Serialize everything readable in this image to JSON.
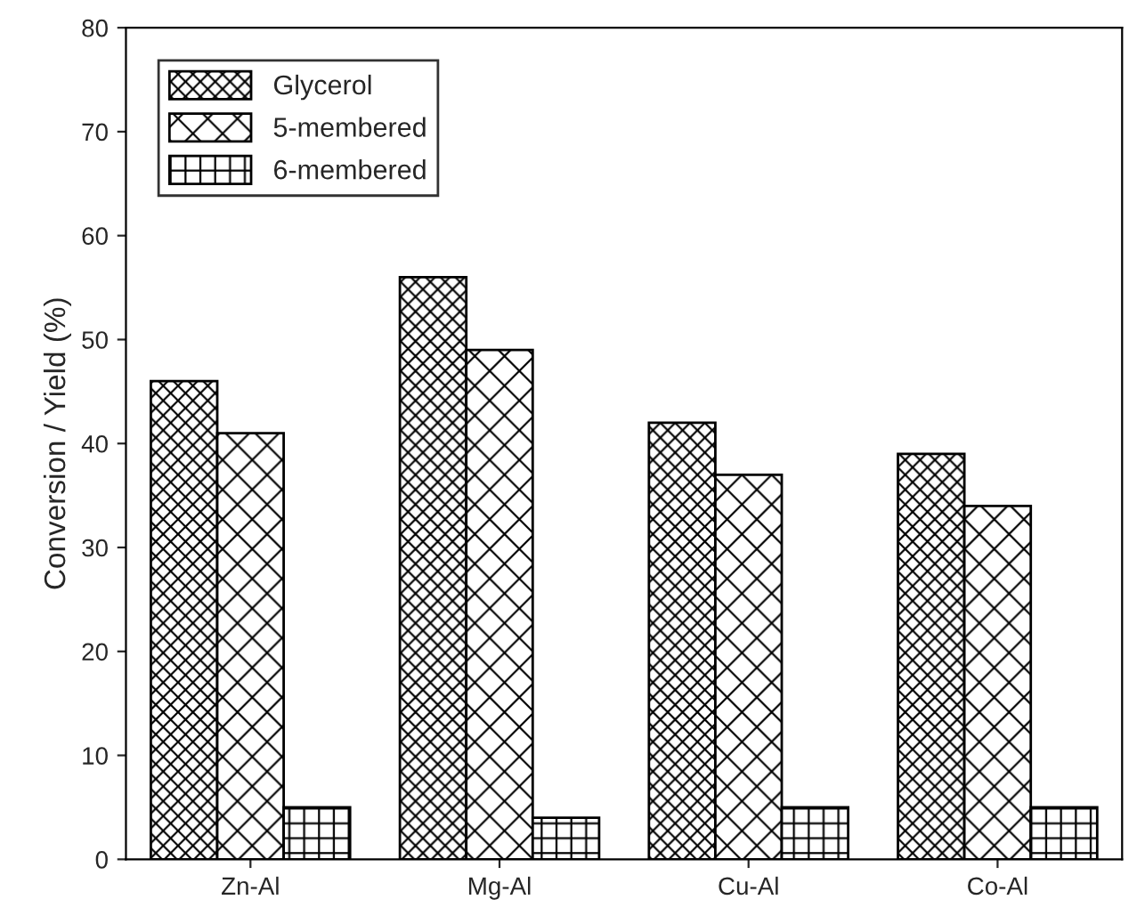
{
  "chart_data": {
    "type": "bar",
    "ylabel": "Conversion / Yield (%)",
    "categories": [
      "Zn-Al",
      "Mg-Al",
      "Cu-Al",
      "Co-Al"
    ],
    "series": [
      {
        "name": "Glycerol",
        "color": "#000000",
        "values": [
          46,
          56,
          42,
          39
        ]
      },
      {
        "name": "5-membered",
        "color": "#000000",
        "values": [
          41,
          49,
          37,
          34
        ]
      },
      {
        "name": "6-membered",
        "color": "#000000",
        "values": [
          5,
          4,
          5,
          5
        ]
      }
    ],
    "ylim": [
      0,
      80
    ],
    "yticks": [
      0,
      10,
      20,
      30,
      40,
      50,
      60,
      70,
      80
    ],
    "grid": false,
    "legend": "top left"
  }
}
